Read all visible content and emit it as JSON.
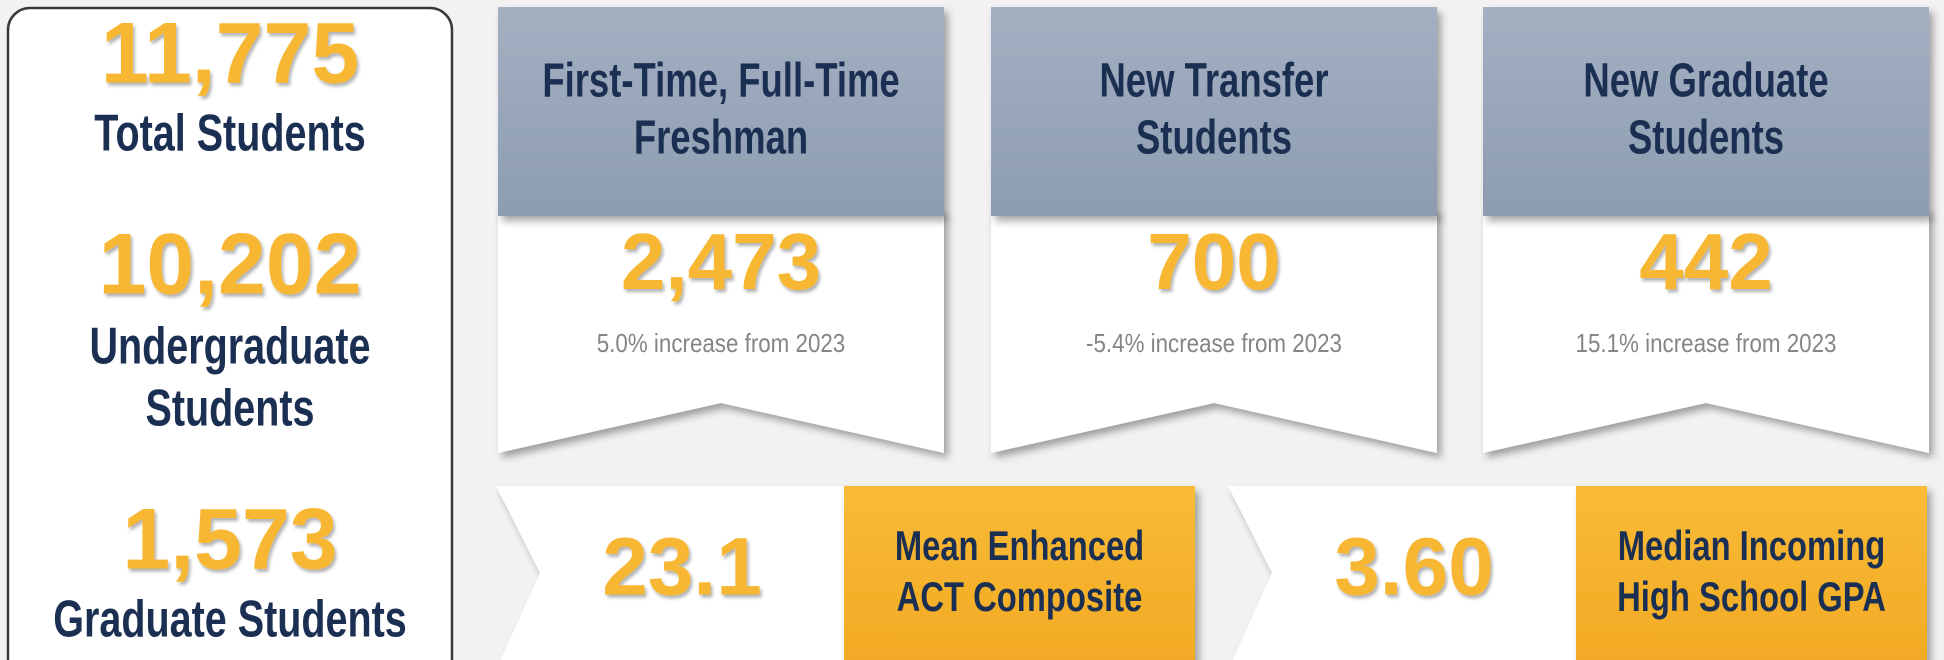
{
  "summary": [
    {
      "value": "11,775",
      "label": [
        "Total Students"
      ]
    },
    {
      "value": "10,202",
      "label": [
        "Undergraduate",
        "Students"
      ]
    },
    {
      "value": "1,573",
      "label": [
        "Graduate Students"
      ]
    }
  ],
  "cards": [
    {
      "title": [
        "First-Time, Full-Time",
        "Freshman"
      ],
      "value": "2,473",
      "note": "5.0% increase from 2023"
    },
    {
      "title": [
        "New Transfer",
        "Students"
      ],
      "value": "700",
      "note": "-5.4% increase from 2023"
    },
    {
      "title": [
        "New Graduate",
        "Students"
      ],
      "value": "442",
      "note": "15.1% increase from 2023"
    }
  ],
  "metrics": [
    {
      "value": "23.1",
      "label": [
        "Mean Enhanced",
        "ACT Composite"
      ]
    },
    {
      "value": "3.60",
      "label": [
        "Median Incoming",
        "High School GPA"
      ]
    }
  ]
}
